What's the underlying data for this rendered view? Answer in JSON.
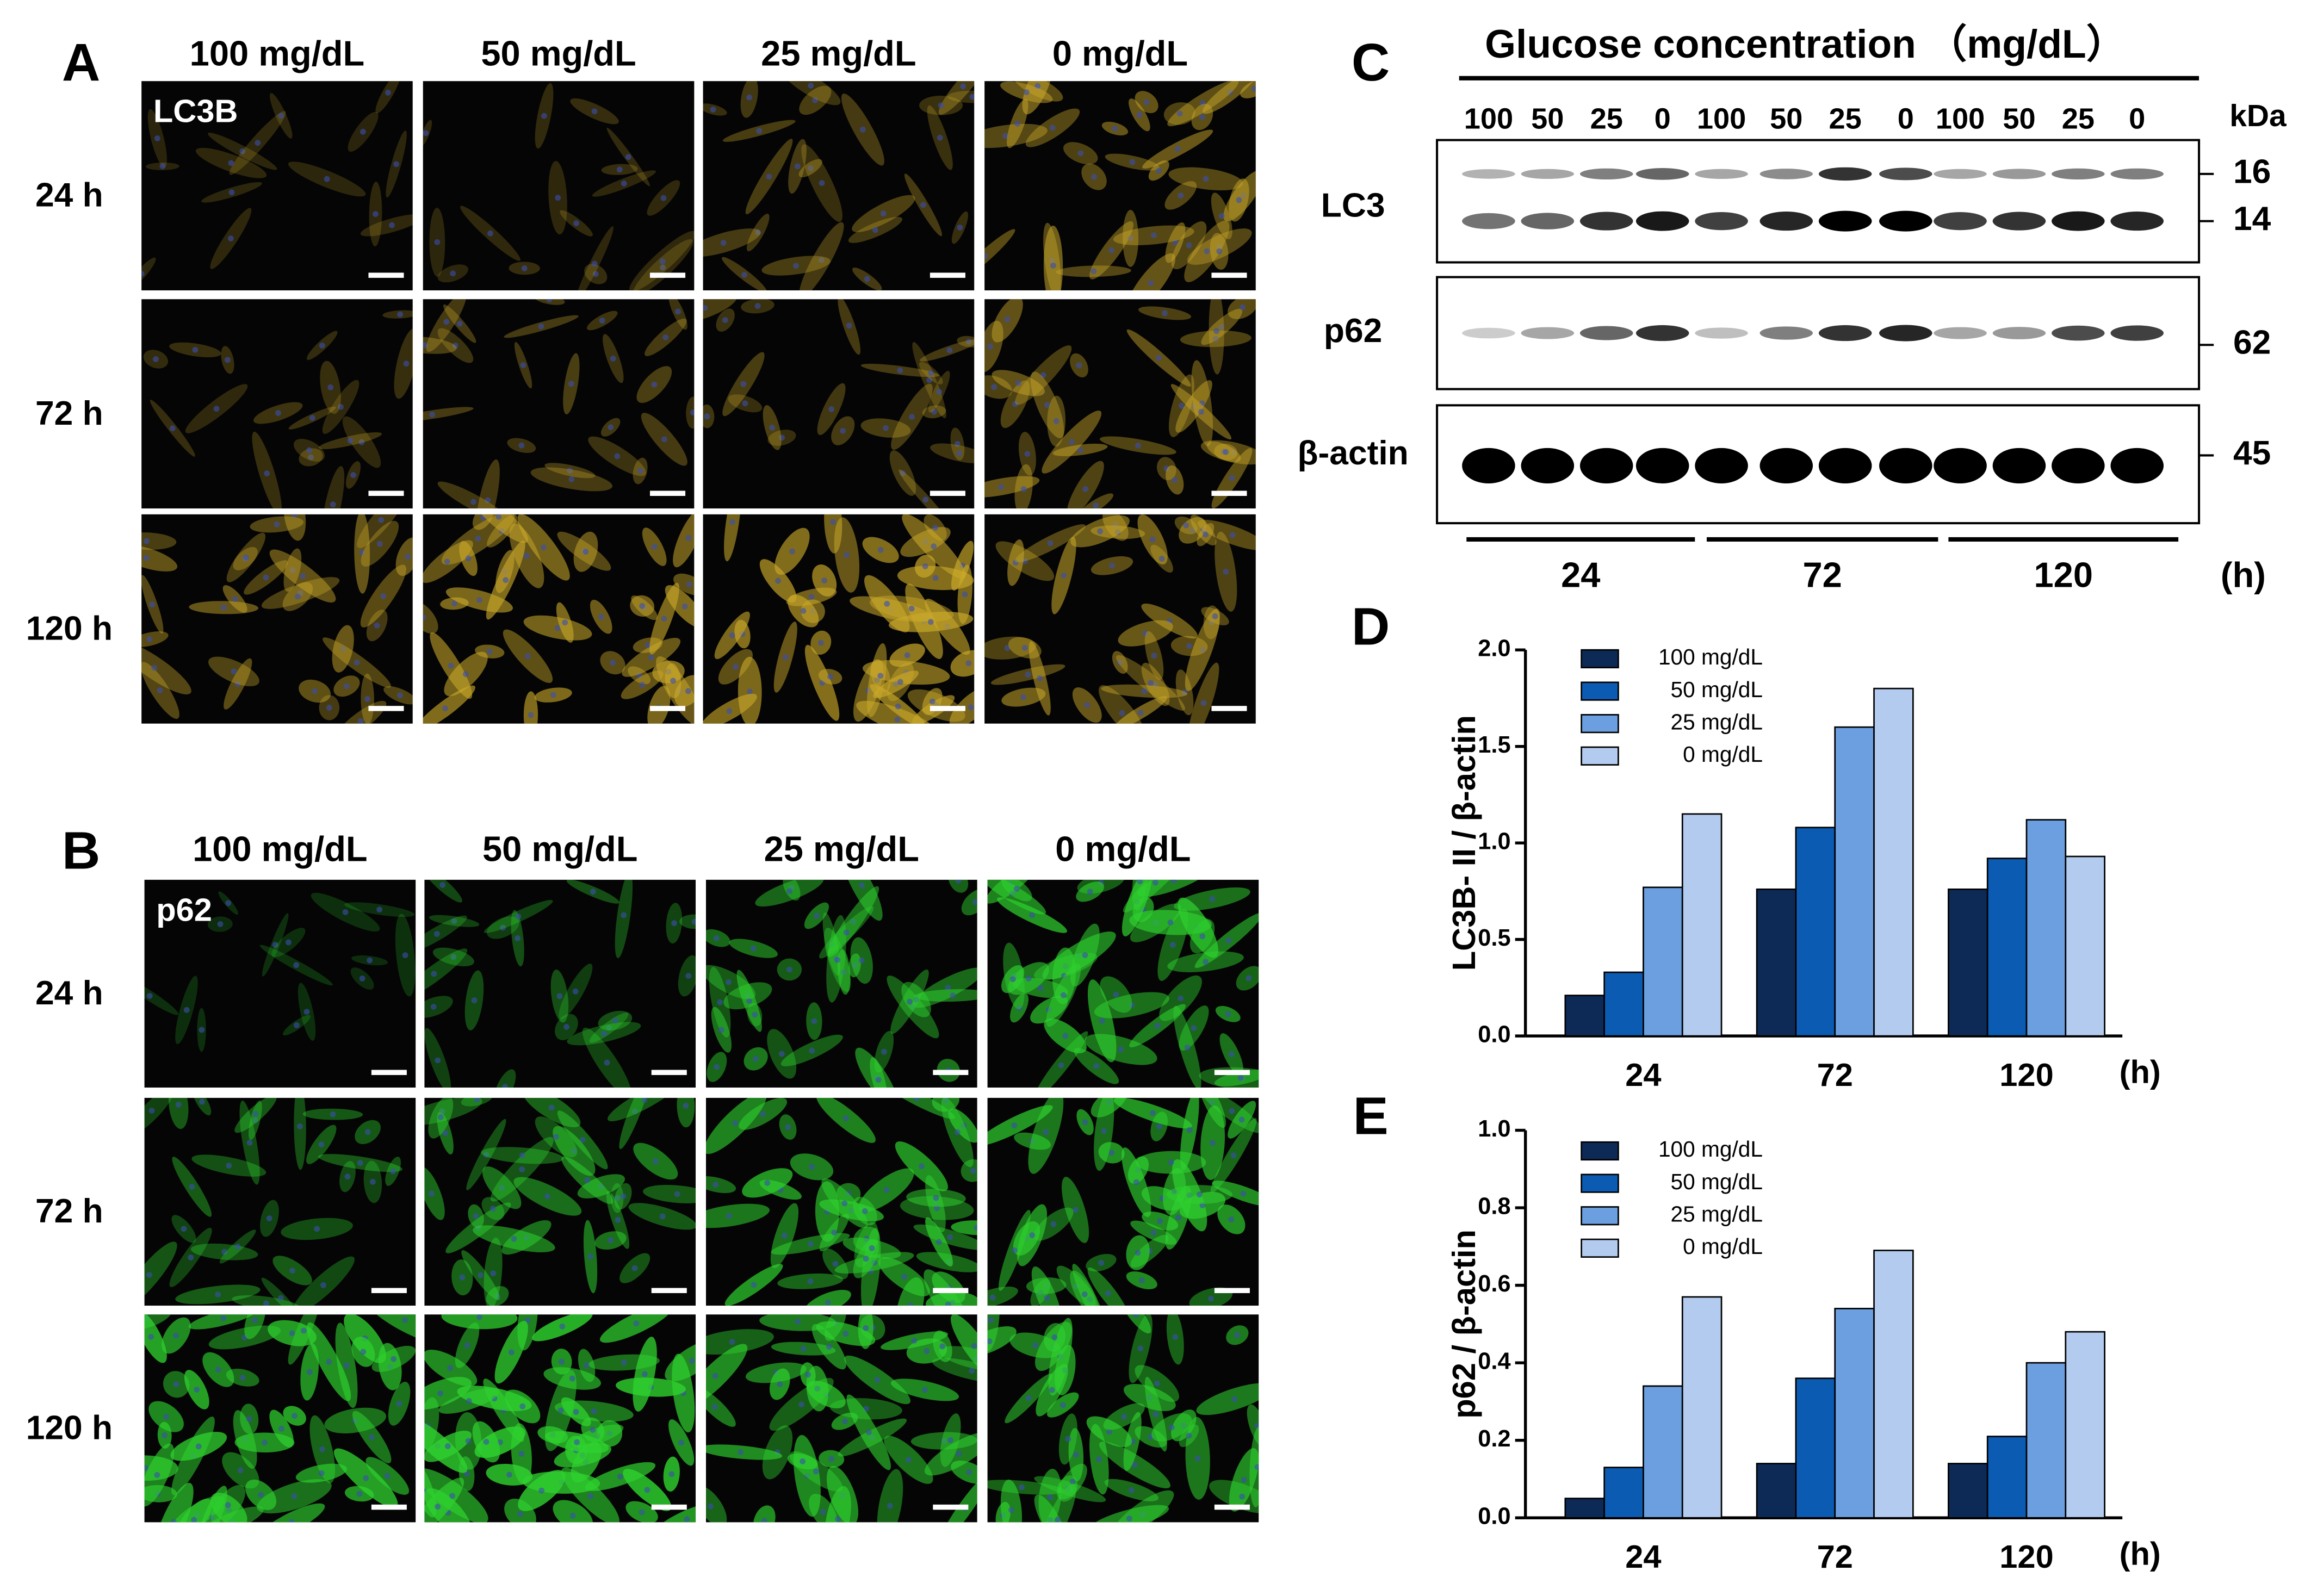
{
  "panel_a": {
    "label": "A",
    "stain": "LC3B",
    "columns": [
      "100 mg/dL",
      "50 mg/dL",
      "25 mg/dL",
      "0 mg/dL"
    ],
    "rows": [
      "24 h",
      "72 h",
      "120 h"
    ]
  },
  "panel_b": {
    "label": "B",
    "stain": "p62",
    "columns": [
      "100 mg/dL",
      "50 mg/dL",
      "25 mg/dL",
      "0 mg/dL"
    ],
    "rows": [
      "24 h",
      "72 h",
      "120 h"
    ]
  },
  "panel_c": {
    "label": "C",
    "title": "Glucose concentration （mg/dL）",
    "lanes": [
      "100",
      "50",
      "25",
      "0",
      "100",
      "50",
      "25",
      "0",
      "100",
      "50",
      "25",
      "0"
    ],
    "unit": "kDa",
    "blots": [
      {
        "name": "LC3",
        "markers": [
          "16",
          "14"
        ]
      },
      {
        "name": "p62",
        "markers": [
          "62"
        ]
      },
      {
        "name": "β-actin",
        "markers": [
          "45"
        ]
      }
    ],
    "times": [
      "24",
      "72",
      "120"
    ],
    "time_unit": "(h)"
  },
  "chart_data": [
    {
      "type": "bar",
      "panel": "D",
      "y_label": "LC3B- II / β-actin",
      "x_label": "(h)",
      "categories": [
        "24",
        "72",
        "120"
      ],
      "series": [
        {
          "name": "100 mg/dL",
          "color": "#0d2a57",
          "values": [
            0.21,
            0.76,
            0.76
          ]
        },
        {
          "name": "50 mg/dL",
          "color": "#0b5bb3",
          "values": [
            0.33,
            1.08,
            0.92
          ]
        },
        {
          "name": "25 mg/dL",
          "color": "#6b9fe0",
          "values": [
            0.77,
            1.6,
            1.12
          ]
        },
        {
          "name": "0 mg/dL",
          "color": "#b3cbee",
          "values": [
            1.15,
            1.8,
            0.93
          ]
        }
      ],
      "ylim": [
        0,
        2
      ],
      "yticks": [
        {
          "value": 0,
          "label": "0.0"
        },
        {
          "value": 0.5,
          "label": "0.5"
        },
        {
          "value": 1,
          "label": "1.0"
        },
        {
          "value": 1.5,
          "label": "1.5"
        },
        {
          "value": 2,
          "label": "2.0"
        }
      ]
    },
    {
      "type": "bar",
      "panel": "E",
      "y_label": "p62 / β-actin",
      "x_label": "(h)",
      "categories": [
        "24",
        "72",
        "120"
      ],
      "series": [
        {
          "name": "100 mg/dL",
          "color": "#0d2a57",
          "values": [
            0.05,
            0.14,
            0.14
          ]
        },
        {
          "name": "50 mg/dL",
          "color": "#0b5bb3",
          "values": [
            0.13,
            0.36,
            0.21
          ]
        },
        {
          "name": "25 mg/dL",
          "color": "#6b9fe0",
          "values": [
            0.34,
            0.54,
            0.4
          ]
        },
        {
          "name": "0 mg/dL",
          "color": "#b3cbee",
          "values": [
            0.57,
            0.69,
            0.48
          ]
        }
      ],
      "ylim": [
        0,
        1
      ],
      "yticks": [
        {
          "value": 0,
          "label": "0.0"
        },
        {
          "value": 0.2,
          "label": "0.2"
        },
        {
          "value": 0.4,
          "label": "0.4"
        },
        {
          "value": 0.6,
          "label": "0.6"
        },
        {
          "value": 0.8,
          "label": "0.8"
        },
        {
          "value": 1,
          "label": "1.0"
        }
      ]
    }
  ]
}
